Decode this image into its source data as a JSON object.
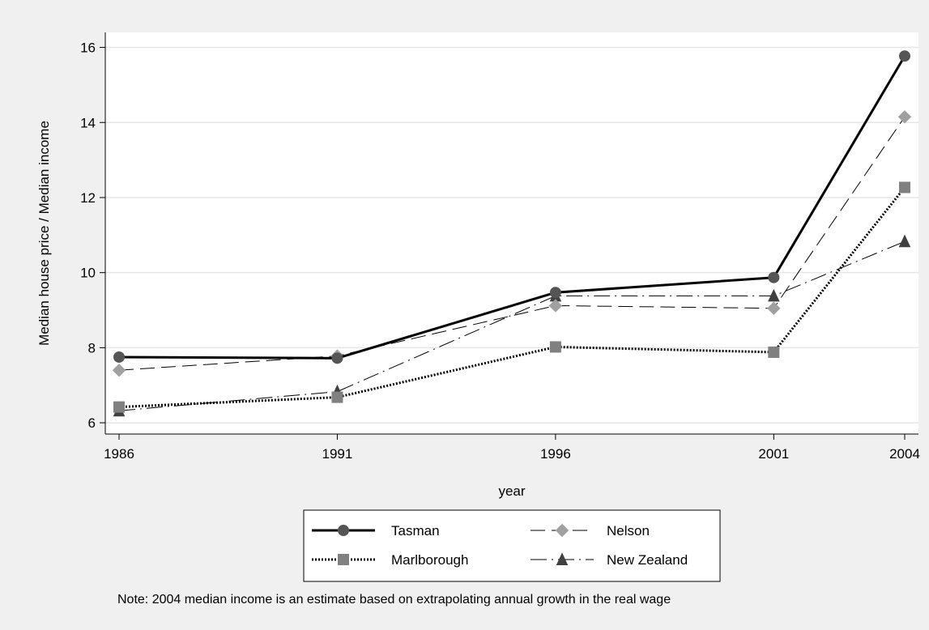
{
  "chart_data": {
    "type": "line",
    "title": "",
    "xlabel": "year",
    "ylabel": "Median house price / Median income",
    "x": [
      1986,
      1991,
      1996,
      2001,
      2004
    ],
    "xlim": [
      1986,
      2004
    ],
    "ylim": [
      5.7,
      16.4
    ],
    "yticks": [
      6,
      8,
      10,
      12,
      14,
      16
    ],
    "grid": true,
    "legend_position": "bottom",
    "note": "Note: 2004 median income is an estimate based on extrapolating annual growth in the real wage",
    "series": [
      {
        "name": "Tasman",
        "values": [
          7.75,
          7.72,
          9.47,
          9.87,
          15.77
        ],
        "color": "#000000",
        "marker": "circle",
        "marker_color": "#555555",
        "line_style": "solid",
        "line_width": 3
      },
      {
        "name": "Nelson",
        "values": [
          7.4,
          7.78,
          9.12,
          9.05,
          14.15
        ],
        "color": "#000000",
        "marker": "diamond",
        "marker_color": "#a0a0a0",
        "line_style": "long-dash",
        "line_width": 1
      },
      {
        "name": "Marlborough",
        "values": [
          6.42,
          6.68,
          8.02,
          7.88,
          12.27
        ],
        "color": "#000000",
        "marker": "square",
        "marker_color": "#808080",
        "line_style": "dotted",
        "line_width": 3
      },
      {
        "name": "New Zealand",
        "values": [
          6.32,
          6.83,
          9.38,
          9.38,
          10.83
        ],
        "color": "#000000",
        "marker": "triangle",
        "marker_color": "#404040",
        "line_style": "long-dash-dot",
        "line_width": 1
      }
    ]
  }
}
